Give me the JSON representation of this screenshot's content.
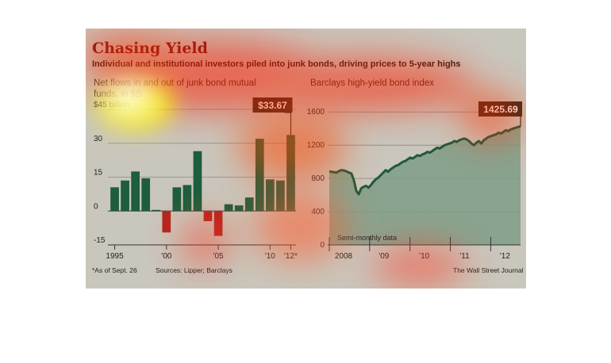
{
  "figure": {
    "title": "Chasing Yield",
    "subtitle": "Individual and institutional investors piled into junk bonds, driving prices to 5-year highs",
    "footnote": "*As of Sept. 26",
    "sources": "Sources: Lipper; Barclays",
    "credit": "The Wall Street Journal"
  },
  "chart_data": [
    {
      "type": "bar",
      "title": "Net flows in and out of junk bond mutual funds, in $B",
      "title_lines": [
        "Net flows in and out of junk bond mutual",
        "funds, in $B"
      ],
      "x": [
        1995,
        1996,
        1997,
        1998,
        1999,
        2000,
        2001,
        2002,
        2003,
        2004,
        2005,
        2006,
        2007,
        2008,
        2009,
        2010,
        2011,
        2012
      ],
      "values": [
        10.5,
        13.5,
        17.5,
        14.5,
        0.5,
        -9.5,
        10.5,
        11.5,
        26.5,
        -4.5,
        -11,
        3,
        2.5,
        6,
        32,
        14,
        13.5,
        33.67
      ],
      "x_tick_labels": [
        "1995",
        "'00",
        "'05",
        "'10",
        "'12*"
      ],
      "x_tick_years": [
        1995,
        2000,
        2005,
        2010,
        2012
      ],
      "y_ticks": [
        -15,
        0,
        15,
        30,
        45
      ],
      "y_tick_labels": [
        "-15",
        "0",
        "15",
        "30",
        "$45 billion"
      ],
      "ylim": [
        -15,
        45
      ],
      "positive_color": "#1d5e3c",
      "negative_color": "#b3261e",
      "callout": "$33.67",
      "grid": true
    },
    {
      "type": "area",
      "title": "Barclays high-yield bond index",
      "x_start": 2008.0,
      "x_end": 2012.74,
      "points_per_year": 24,
      "values": [
        885,
        880,
        875,
        870,
        890,
        900,
        895,
        885,
        870,
        860,
        780,
        650,
        610,
        680,
        700,
        710,
        690,
        720,
        760,
        790,
        810,
        840,
        870,
        900,
        880,
        910,
        930,
        950,
        960,
        980,
        1000,
        1010,
        1030,
        1050,
        1040,
        1060,
        1080,
        1070,
        1090,
        1100,
        1120,
        1110,
        1130,
        1150,
        1170,
        1160,
        1180,
        1200,
        1210,
        1220,
        1230,
        1250,
        1240,
        1260,
        1270,
        1280,
        1270,
        1250,
        1220,
        1200,
        1230,
        1250,
        1220,
        1260,
        1280,
        1300,
        1310,
        1320,
        1330,
        1350,
        1340,
        1360,
        1380,
        1370,
        1390,
        1400,
        1410,
        1420,
        1425.69
      ],
      "x_tick_labels": [
        "2008",
        "'09",
        "'10",
        "'11",
        "'12"
      ],
      "x_tick_years": [
        2008,
        2009,
        2010,
        2011,
        2012
      ],
      "y_ticks": [
        0,
        400,
        800,
        1200,
        1600
      ],
      "ylim": [
        0,
        1650
      ],
      "callout": "1425.69",
      "annotation": "Semi-monthly data",
      "line_color": "#1f5a3a",
      "fill_color": "#7e9c86",
      "grid": true
    }
  ]
}
